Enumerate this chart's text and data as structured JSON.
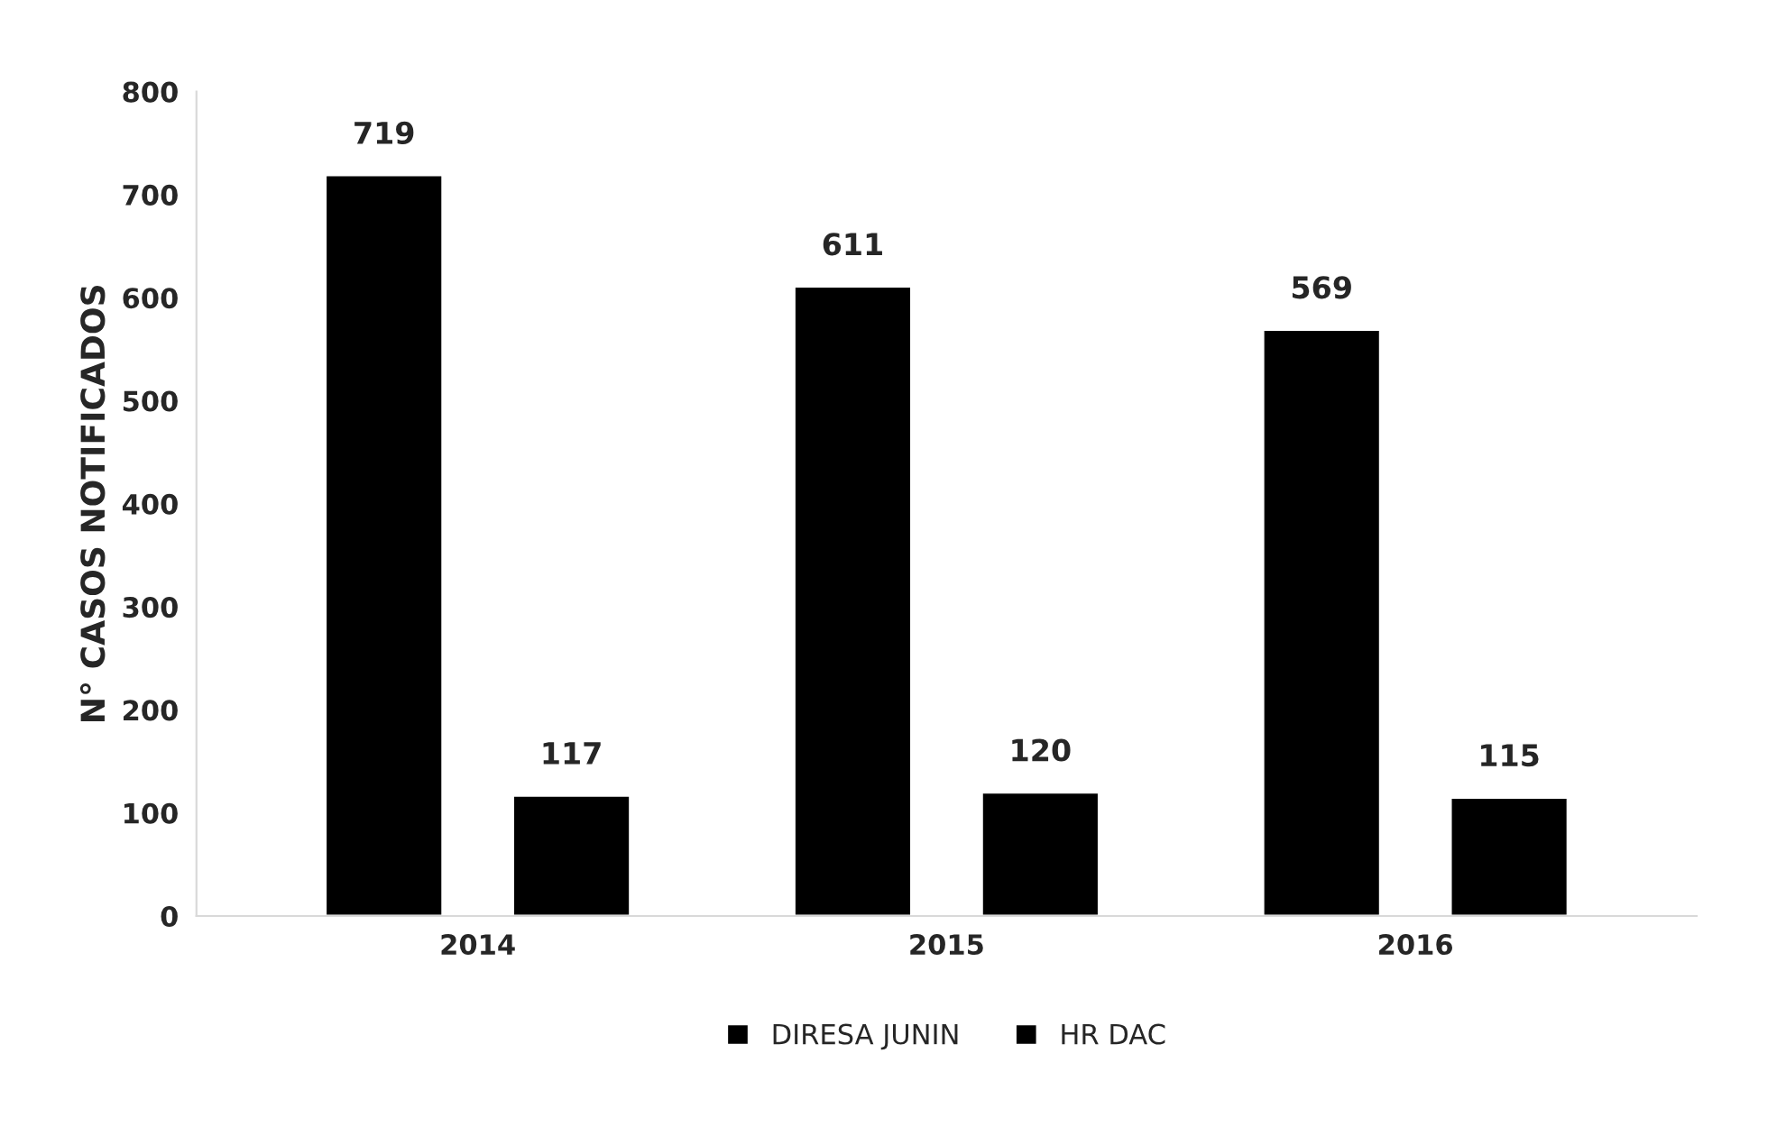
{
  "chart_data": {
    "type": "bar",
    "ylabel": "N° CASOS NOTIFICADOS",
    "categories": [
      "2014",
      "2015",
      "2016"
    ],
    "series": [
      {
        "name": "DIRESA JUNIN",
        "color": "#000000",
        "values": [
          719,
          611,
          569
        ]
      },
      {
        "name": "HR DAC",
        "color": "#000000",
        "values": [
          117,
          120,
          115
        ]
      }
    ],
    "ylim": [
      0,
      800
    ],
    "yticks": [
      0,
      100,
      200,
      300,
      400,
      500,
      600,
      700,
      800
    ],
    "data_labels": true,
    "legend": "bottom",
    "grid": false
  }
}
